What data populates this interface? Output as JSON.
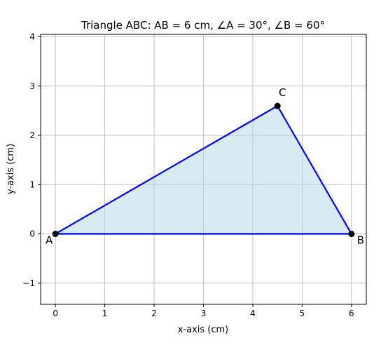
{
  "chart_data": {
    "type": "scatter",
    "title": "Triangle ABC: AB = 6 cm, ∠A = 30°, ∠B = 60°",
    "xlabel": "x-axis (cm)",
    "ylabel": "y-axis (cm)",
    "xlim": [
      -0.3,
      6.3
    ],
    "ylim": [
      -1.43,
      4.05
    ],
    "xticks": [
      0,
      1,
      2,
      3,
      4,
      5,
      6
    ],
    "yticks": [
      -1,
      0,
      1,
      2,
      3,
      4
    ],
    "ytick_labels": [
      "−1",
      "0",
      "1",
      "2",
      "3",
      "4"
    ],
    "grid": true,
    "points": [
      {
        "label": "A",
        "x": 0,
        "y": 0
      },
      {
        "label": "B",
        "x": 6,
        "y": 0
      },
      {
        "label": "C",
        "x": 4.5,
        "y": 2.598
      }
    ],
    "colors": {
      "edge": "#0000ff",
      "fill": "#add8e6",
      "point": "#000000",
      "grid": "#b0b0b0"
    }
  }
}
